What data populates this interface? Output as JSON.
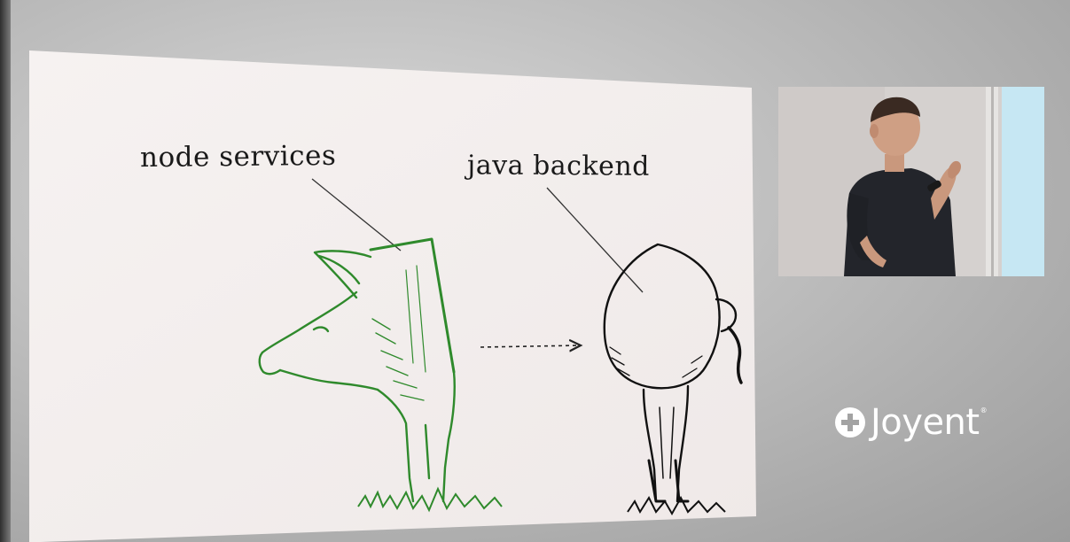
{
  "slide": {
    "label_left": "node services",
    "label_right": "java backend",
    "illustration_left": "green pig front half",
    "illustration_right": "black pig back half",
    "arrow": "dashed-arrow",
    "colors": {
      "background": "#f4efee",
      "pig_front": "#2f8a2c",
      "pig_back": "#111111"
    }
  },
  "speaker": {
    "description": "speaker holding microphone"
  },
  "brand": {
    "name": "Joyent",
    "trademark": "®",
    "icon": "plus-circle-icon"
  }
}
